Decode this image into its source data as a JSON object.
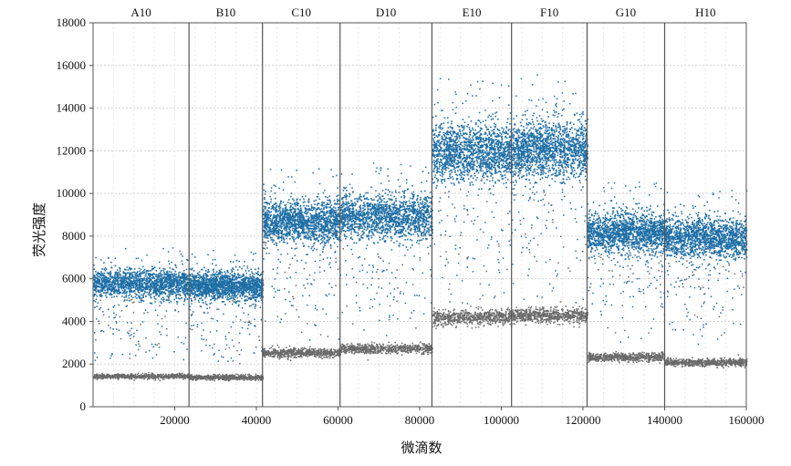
{
  "chart_data": {
    "type": "scatter",
    "xlabel": "微滴数",
    "ylabel": "荧光强度",
    "xlim": [
      0,
      160000
    ],
    "ylim": [
      0,
      18000
    ],
    "x_ticks": [
      20000,
      40000,
      60000,
      80000,
      100000,
      120000,
      140000,
      160000
    ],
    "y_ticks": [
      0,
      2000,
      4000,
      6000,
      8000,
      10000,
      12000,
      14000,
      16000,
      18000
    ],
    "grid": true,
    "colors": {
      "positive": "#1f6fa6",
      "negative": "#6b6b6b"
    },
    "wells": [
      {
        "name": "A10",
        "x_range": [
          0,
          23500
        ],
        "positive_center": 5800,
        "negative_center": 1450
      },
      {
        "name": "B10",
        "x_range": [
          23500,
          41500
        ],
        "positive_center": 5700,
        "negative_center": 1400
      },
      {
        "name": "C10",
        "x_range": [
          41500,
          60500
        ],
        "positive_center": 8700,
        "negative_center": 2550
      },
      {
        "name": "D10",
        "x_range": [
          60500,
          83000
        ],
        "positive_center": 8950,
        "negative_center": 2750
      },
      {
        "name": "E10",
        "x_range": [
          83000,
          102500
        ],
        "positive_center": 12000,
        "negative_center": 4200
      },
      {
        "name": "F10",
        "x_range": [
          102500,
          121000
        ],
        "positive_center": 12100,
        "negative_center": 4300
      },
      {
        "name": "G10",
        "x_range": [
          121000,
          140000
        ],
        "positive_center": 8200,
        "negative_center": 2350
      },
      {
        "name": "H10",
        "x_range": [
          140000,
          160000
        ],
        "positive_center": 7950,
        "negative_center": 2100
      }
    ]
  }
}
